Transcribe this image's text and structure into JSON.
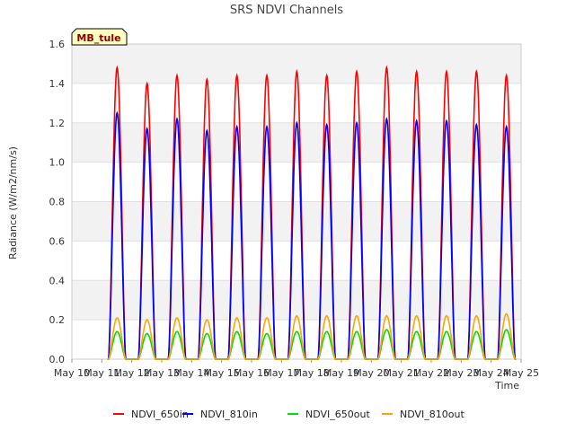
{
  "chart_data": {
    "type": "line",
    "title": "SRS NDVI Channels",
    "station_label": "MB_tule",
    "xlabel": "Time",
    "ylabel": "Radiance (W/m2/nm/s)",
    "ylim": [
      0.0,
      1.6
    ],
    "yticks": [
      0.0,
      0.2,
      0.4,
      0.6,
      0.8,
      1.0,
      1.2,
      1.4,
      1.6
    ],
    "xlim": [
      "2024-05-10",
      "2024-05-25"
    ],
    "xticks": [
      "May 10",
      "May 11",
      "May 12",
      "May 13",
      "May 14",
      "May 15",
      "May 16",
      "May 17",
      "May 18",
      "May 19",
      "May 20",
      "May 21",
      "May 22",
      "May 23",
      "May 24",
      "May 25"
    ],
    "grid": true,
    "legend_position": "bottom",
    "x": [
      "2024-05-11",
      "2024-05-12",
      "2024-05-13",
      "2024-05-14",
      "2024-05-15",
      "2024-05-16",
      "2024-05-17",
      "2024-05-18",
      "2024-05-19",
      "2024-05-20",
      "2024-05-21",
      "2024-05-22",
      "2024-05-23",
      "2024-05-24"
    ],
    "series": [
      {
        "name": "NDVI_650in",
        "color": "#ff0000",
        "values": [
          1.48,
          1.4,
          1.44,
          1.42,
          1.44,
          1.44,
          1.46,
          1.44,
          1.46,
          1.48,
          1.46,
          1.46,
          1.46,
          1.44
        ]
      },
      {
        "name": "NDVI_810in",
        "color": "#0000ff",
        "values": [
          1.25,
          1.17,
          1.22,
          1.16,
          1.18,
          1.18,
          1.2,
          1.19,
          1.2,
          1.22,
          1.21,
          1.21,
          1.19,
          1.18
        ]
      },
      {
        "name": "NDVI_650out",
        "color": "#00dd00",
        "values": [
          0.14,
          0.13,
          0.14,
          0.13,
          0.14,
          0.13,
          0.14,
          0.14,
          0.14,
          0.15,
          0.14,
          0.14,
          0.14,
          0.15
        ]
      },
      {
        "name": "NDVI_810out",
        "color": "#ffa500",
        "values": [
          0.21,
          0.2,
          0.21,
          0.2,
          0.21,
          0.21,
          0.22,
          0.22,
          0.22,
          0.22,
          0.22,
          0.22,
          0.22,
          0.23
        ]
      }
    ]
  }
}
